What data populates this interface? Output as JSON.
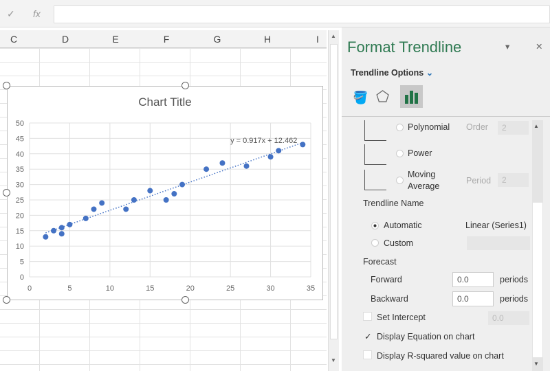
{
  "formula_bar": {
    "check_icon": "✓",
    "fx_label": "fx",
    "value": ""
  },
  "columns": [
    "C",
    "D",
    "E",
    "F",
    "G",
    "H",
    "I"
  ],
  "chart": {
    "title": "Chart Title",
    "equation": "y = 0.917x + 12.462"
  },
  "chart_data": {
    "type": "scatter",
    "title": "Chart Title",
    "xlim": [
      0,
      35
    ],
    "ylim": [
      0,
      50
    ],
    "xticks": [
      0,
      5,
      10,
      15,
      20,
      25,
      30,
      35
    ],
    "yticks": [
      0,
      5,
      10,
      15,
      20,
      25,
      30,
      35,
      40,
      45,
      50
    ],
    "grid": true,
    "points": [
      [
        2,
        13
      ],
      [
        3,
        15
      ],
      [
        4,
        16
      ],
      [
        4,
        14
      ],
      [
        5,
        17
      ],
      [
        7,
        19
      ],
      [
        8,
        22
      ],
      [
        9,
        24
      ],
      [
        12,
        22
      ],
      [
        13,
        25
      ],
      [
        15,
        28
      ],
      [
        17,
        25
      ],
      [
        18,
        27
      ],
      [
        19,
        30
      ],
      [
        22,
        35
      ],
      [
        24,
        37
      ],
      [
        27,
        36
      ],
      [
        30,
        39
      ],
      [
        31,
        41
      ],
      [
        34,
        43
      ]
    ],
    "trendline": {
      "type": "linear",
      "slope": 0.917,
      "intercept": 12.462,
      "label": "y = 0.917x + 12.462"
    },
    "colors": {
      "points": "#4472c4",
      "trendline": "#4472c4"
    }
  },
  "panel": {
    "title": "Format Trendline",
    "section": "Trendline Options",
    "types": [
      {
        "label": "Polynomial",
        "param": "Order",
        "value": "2"
      },
      {
        "label": "Power"
      },
      {
        "label": "Moving",
        "label2": "Average",
        "param": "Period",
        "value": "2"
      }
    ],
    "name_heading": "Trendline Name",
    "automatic": "Automatic",
    "automatic_value": "Linear (Series1)",
    "custom": "Custom",
    "forecast": "Forecast",
    "forward": "Forward",
    "forward_value": "0.0",
    "backward": "Backward",
    "backward_value": "0.0",
    "periods": "periods",
    "set_intercept": "Set Intercept",
    "intercept_value": "0.0",
    "display_equation": "Display Equation on chart",
    "display_equation_checked": true,
    "display_r2": "Display R-squared value on chart",
    "display_r2_checked": false,
    "accent": "#2f7a52"
  }
}
